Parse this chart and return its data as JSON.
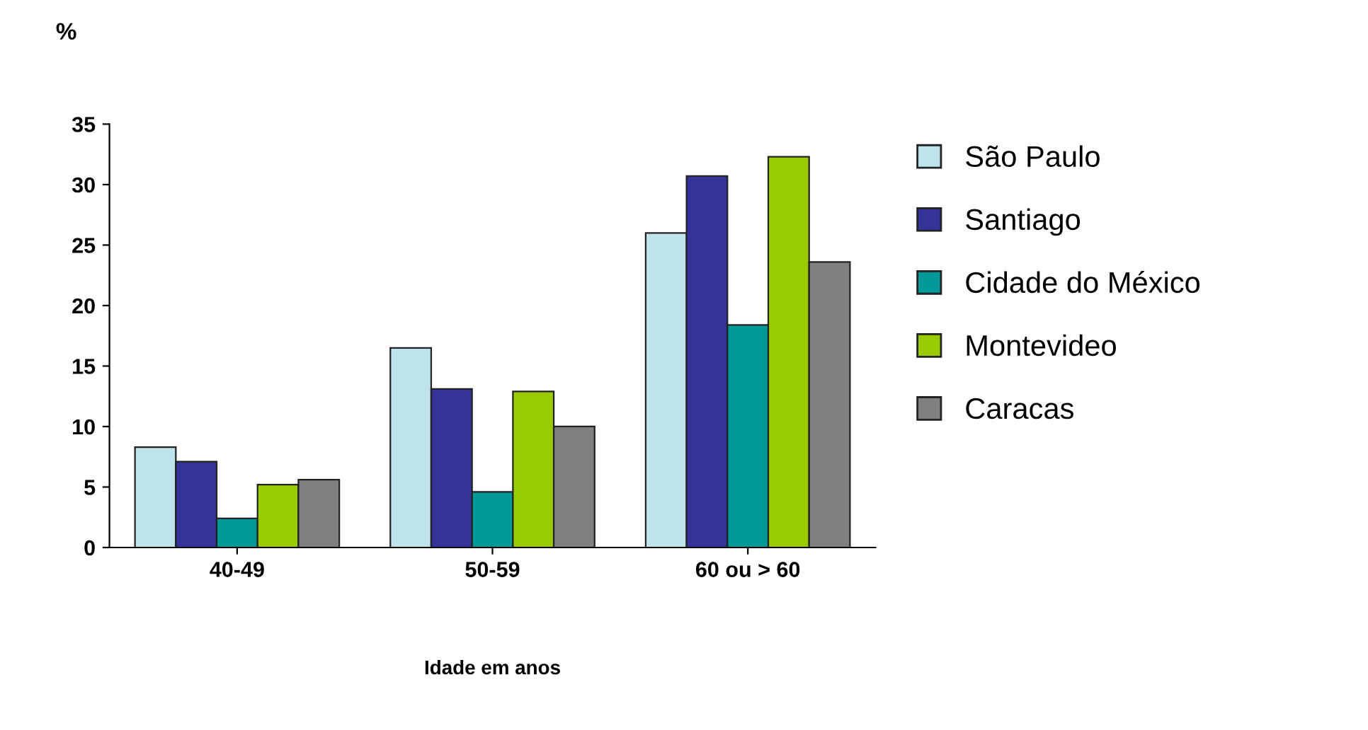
{
  "chart_data": {
    "type": "bar",
    "categories": [
      "40-49",
      "50-59",
      "60 ou > 60"
    ],
    "series": [
      {
        "name": "São Paulo",
        "color": "#bfe3ea",
        "values": [
          8.3,
          16.5,
          26.0
        ]
      },
      {
        "name": "Santiago",
        "color": "#333399",
        "values": [
          7.1,
          13.1,
          30.7
        ]
      },
      {
        "name": "Cidade do México",
        "color": "#009999",
        "values": [
          2.4,
          4.6,
          18.4
        ]
      },
      {
        "name": "Montevideo",
        "color": "#99cc00",
        "values": [
          5.2,
          12.9,
          32.3
        ]
      },
      {
        "name": "Caracas",
        "color": "#808080",
        "values": [
          5.6,
          10.0,
          23.6
        ]
      }
    ],
    "ylabel": "%",
    "xlabel": "Idade em anos",
    "ylim": [
      0,
      35
    ],
    "yticks": [
      0,
      5,
      10,
      15,
      20,
      25,
      30,
      35
    ],
    "grid": false,
    "legend": "right"
  }
}
